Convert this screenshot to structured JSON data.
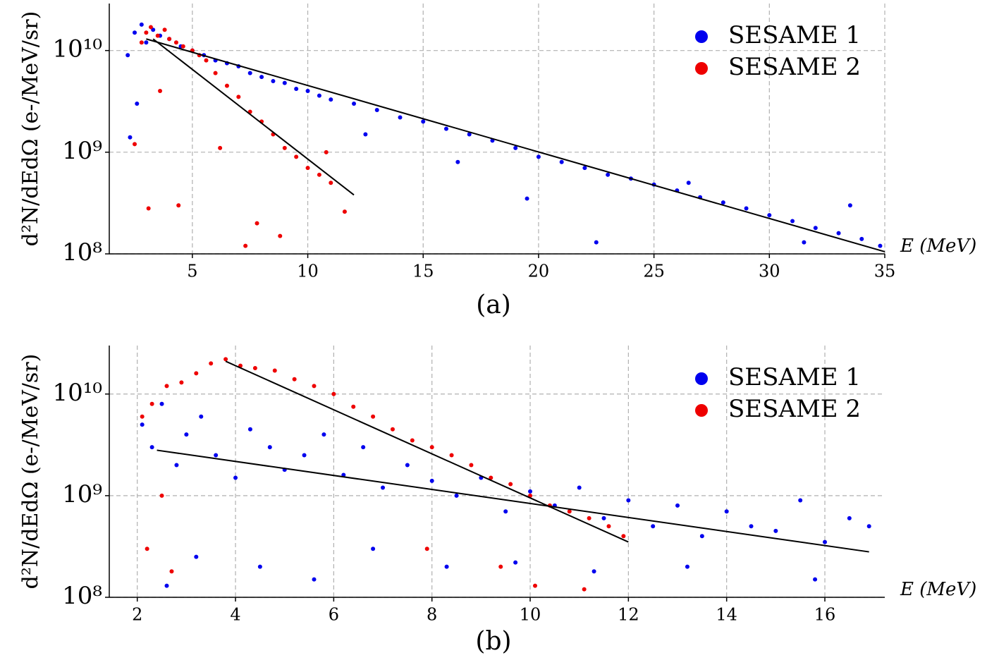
{
  "chart_data": [
    {
      "type": "scatter",
      "caption": "(a)",
      "xlabel": "E (MeV)",
      "ylabel": "d²N/dEdΩ (e-/MeV/sr)",
      "yscale": "log",
      "grid": true,
      "legend": "upper right",
      "xlim": [
        1.4,
        35
      ],
      "ylim": [
        100000000,
        29000000000
      ],
      "xticks": [
        5,
        10,
        15,
        20,
        25,
        30,
        35
      ],
      "yticks": [
        {
          "value": 100000000,
          "label": "10⁸"
        },
        {
          "value": 1000000000,
          "label": "10⁹"
        },
        {
          "value": 10000000000,
          "label": "10¹⁰"
        }
      ],
      "series": [
        {
          "name": "SESAME 1",
          "color": "#0000ee",
          "x": [
            2.2,
            2.5,
            2.8,
            3.0,
            3.3,
            3.6,
            4.0,
            4.5,
            5.0,
            5.5,
            6.0,
            6.5,
            7.0,
            7.5,
            8.0,
            8.5,
            9.0,
            9.5,
            10,
            10.5,
            11,
            12,
            13,
            14,
            15,
            16,
            17,
            18,
            19,
            20,
            21,
            22,
            23,
            24,
            25,
            26,
            27,
            28,
            29,
            30,
            31,
            32,
            33,
            34,
            34.8,
            2.3,
            2.6,
            12.5,
            16.5,
            19.5,
            22.5,
            26.5,
            31.5,
            33.5
          ],
          "values": [
            9000000000.0,
            15000000000.0,
            18000000000.0,
            12000000000.0,
            16000000000.0,
            14000000000.0,
            13000000000.0,
            11000000000.0,
            10000000000.0,
            9000000000.0,
            8000000000.0,
            7500000000.0,
            7000000000.0,
            6000000000.0,
            5500000000.0,
            5000000000.0,
            4800000000.0,
            4200000000.0,
            4000000000.0,
            3600000000.0,
            3300000000.0,
            3000000000.0,
            2600000000.0,
            2200000000.0,
            2000000000.0,
            1700000000.0,
            1500000000.0,
            1300000000.0,
            1100000000.0,
            900000000.0,
            800000000.0,
            700000000.0,
            600000000.0,
            550000000.0,
            480000000.0,
            420000000.0,
            360000000.0,
            320000000.0,
            280000000.0,
            240000000.0,
            210000000.0,
            180000000.0,
            160000000.0,
            140000000.0,
            120000000.0,
            1400000000.0,
            3000000000.0,
            1500000000.0,
            800000000.0,
            350000000.0,
            130000000.0,
            500000000.0,
            130000000.0,
            300000000.0
          ]
        },
        {
          "name": "SESAME 2",
          "color": "#ee0000",
          "x": [
            2.8,
            3.0,
            3.2,
            3.5,
            3.8,
            4.0,
            4.3,
            4.6,
            5.0,
            5.3,
            5.6,
            6.0,
            6.5,
            7.0,
            7.5,
            8.0,
            8.5,
            9.0,
            9.5,
            10,
            10.5,
            11,
            2.5,
            3.1,
            3.6,
            4.4,
            6.2,
            7.3,
            7.8,
            8.8,
            10.8,
            11.6
          ],
          "values": [
            12000000000.0,
            15000000000.0,
            17000000000.0,
            14000000000.0,
            16000000000.0,
            13000000000.0,
            12000000000.0,
            11000000000.0,
            10000000000.0,
            9000000000.0,
            8000000000.0,
            6000000000.0,
            4500000000.0,
            3500000000.0,
            2500000000.0,
            2000000000.0,
            1500000000.0,
            1100000000.0,
            900000000.0,
            700000000.0,
            600000000.0,
            500000000.0,
            1200000000.0,
            280000000.0,
            4000000000.0,
            300000000.0,
            1100000000.0,
            120000000.0,
            200000000.0,
            150000000.0,
            1000000000.0,
            260000000.0
          ]
        }
      ],
      "fit_lines": [
        {
          "color": "#000000",
          "x": [
            3.3,
            12
          ],
          "values": [
            13000000000.0,
            380000000.0
          ]
        },
        {
          "color": "#000000",
          "x": [
            3.0,
            35
          ],
          "values": [
            13000000000.0,
            105000000.0
          ]
        }
      ]
    },
    {
      "type": "scatter",
      "caption": "(b)",
      "xlabel": "E (MeV)",
      "ylabel": "d²N/dEdΩ (e-/MeV/sr)",
      "yscale": "log",
      "grid": true,
      "legend": "upper right",
      "xlim": [
        1.43,
        17.22
      ],
      "ylim": [
        100000000,
        30000000000
      ],
      "xticks": [
        2,
        4,
        6,
        8,
        10,
        12,
        14,
        16
      ],
      "yticks": [
        {
          "value": 100000000,
          "label": "10⁸"
        },
        {
          "value": 1000000000,
          "label": "10⁹"
        },
        {
          "value": 10000000000,
          "label": "10¹⁰"
        }
      ],
      "series": [
        {
          "name": "SESAME 1",
          "color": "#0000ee",
          "x": [
            2.1,
            2.3,
            2.5,
            2.8,
            3.0,
            3.3,
            3.6,
            4.0,
            4.3,
            4.7,
            5.0,
            5.4,
            5.8,
            6.2,
            6.6,
            7.0,
            7.5,
            8.0,
            8.5,
            9.0,
            9.5,
            10,
            10.5,
            11,
            11.5,
            12,
            12.5,
            13,
            13.5,
            14,
            14.5,
            15,
            15.5,
            16,
            16.5,
            16.9,
            2.6,
            3.2,
            4.5,
            5.6,
            6.8,
            8.3,
            9.7,
            11.3,
            13.2,
            15.8
          ],
          "values": [
            5000000000.0,
            3000000000.0,
            8000000000.0,
            2000000000.0,
            4000000000.0,
            6000000000.0,
            2500000000.0,
            1500000000.0,
            4500000000.0,
            3000000000.0,
            1800000000.0,
            2500000000.0,
            4000000000.0,
            1600000000.0,
            3000000000.0,
            1200000000.0,
            2000000000.0,
            1400000000.0,
            1000000000.0,
            1500000000.0,
            700000000.0,
            1100000000.0,
            800000000.0,
            1200000000.0,
            600000000.0,
            900000000.0,
            500000000.0,
            800000000.0,
            400000000.0,
            700000000.0,
            500000000.0,
            450000000.0,
            900000000.0,
            350000000.0,
            600000000.0,
            500000000.0,
            130000000.0,
            250000000.0,
            200000000.0,
            150000000.0,
            300000000.0,
            200000000.0,
            220000000.0,
            180000000.0,
            200000000.0,
            150000000.0
          ]
        },
        {
          "name": "SESAME 2",
          "color": "#ee0000",
          "x": [
            2.1,
            2.3,
            2.6,
            2.9,
            3.2,
            3.5,
            3.8,
            4.1,
            4.4,
            4.8,
            5.2,
            5.6,
            6.0,
            6.4,
            6.8,
            7.2,
            7.6,
            8.0,
            8.4,
            8.8,
            9.2,
            9.6,
            10,
            10.4,
            10.8,
            11.2,
            11.6,
            11.9,
            2.2,
            2.5,
            2.7,
            7.9,
            9.4,
            10.1,
            11.1
          ],
          "values": [
            6000000000.0,
            8000000000.0,
            12000000000.0,
            13000000000.0,
            16000000000.0,
            20000000000.0,
            22000000000.0,
            19000000000.0,
            18000000000.0,
            17000000000.0,
            14000000000.0,
            12000000000.0,
            10000000000.0,
            7500000000.0,
            6000000000.0,
            4500000000.0,
            3500000000.0,
            3000000000.0,
            2500000000.0,
            2000000000.0,
            1500000000.0,
            1300000000.0,
            1000000000.0,
            800000000.0,
            700000000.0,
            600000000.0,
            500000000.0,
            400000000.0,
            300000000.0,
            1000000000.0,
            180000000.0,
            300000000.0,
            200000000.0,
            130000000.0,
            120000000.0
          ]
        }
      ],
      "fit_lines": [
        {
          "color": "#000000",
          "x": [
            3.8,
            12
          ],
          "values": [
            21000000000.0,
            350000000.0
          ]
        },
        {
          "color": "#000000",
          "x": [
            2.4,
            16.9
          ],
          "values": [
            2800000000.0,
            280000000.0
          ]
        }
      ]
    }
  ]
}
